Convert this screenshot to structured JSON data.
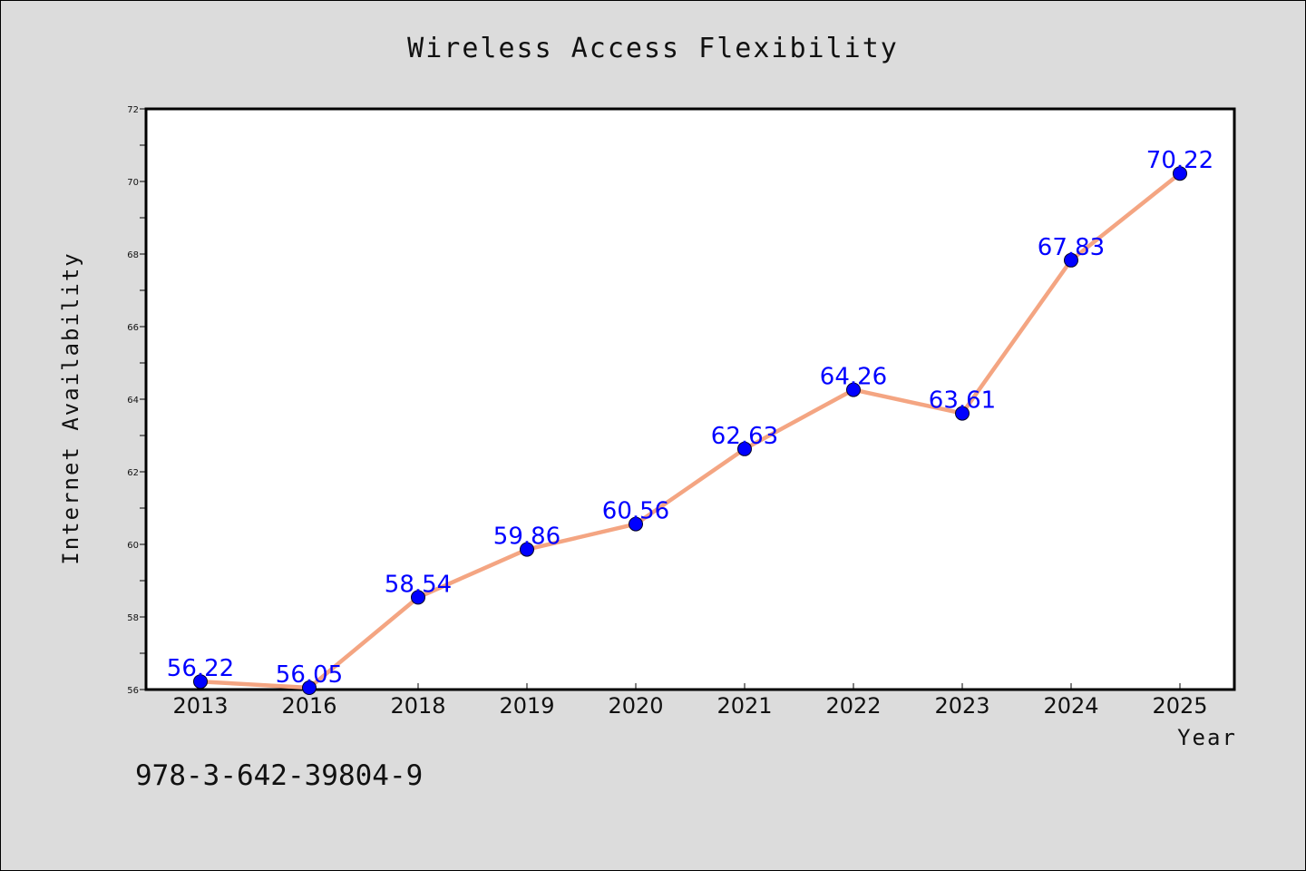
{
  "chart_data": {
    "type": "line",
    "title": "Wireless Access Flexibility",
    "xlabel": "Year",
    "ylabel": "Internet Availability",
    "categories": [
      "2013",
      "2016",
      "2018",
      "2019",
      "2020",
      "2021",
      "2022",
      "2023",
      "2024",
      "2025"
    ],
    "series": [
      {
        "values": [
          56.22,
          56.05,
          58.54,
          59.86,
          60.56,
          62.63,
          64.26,
          63.61,
          67.83,
          70.22
        ],
        "labels": [
          "56.22",
          "56.05",
          "58.54",
          "59.86",
          "60.56",
          "62.63",
          "64.26",
          "63.61",
          "67.83",
          "70.22"
        ],
        "line_color": "#f4a582",
        "marker_color": "#0000ff"
      }
    ],
    "ylim": [
      56,
      72
    ],
    "yticks": [
      "56",
      "58",
      "60",
      "62",
      "64",
      "66",
      "68",
      "70",
      "72"
    ],
    "grid": false,
    "legend": "none"
  },
  "footer": {
    "isbn": "978-3-642-39804-9"
  },
  "colors": {
    "figure_background": "#dcdcdc",
    "plot_background": "#ffffff",
    "line": "#f4a582",
    "marker": "#0000ff",
    "data_label": "#0000ff"
  }
}
